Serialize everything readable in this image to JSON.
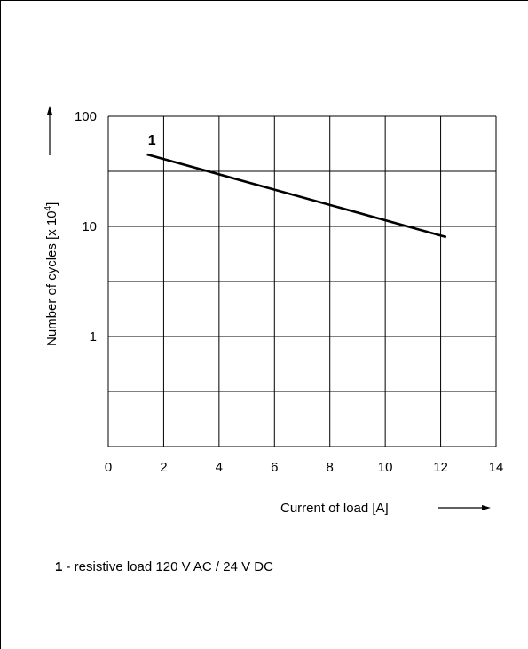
{
  "chart_data": {
    "type": "line",
    "xlabel": "Current of load [A]",
    "ylabel_base": "Number of cycles [x 10",
    "ylabel_exp": "4",
    "ylabel_close": "]",
    "x_ticks": [
      "0",
      "2",
      "4",
      "6",
      "8",
      "10",
      "12",
      "14"
    ],
    "y_ticks": [
      "100",
      "10",
      "1"
    ],
    "y_scale": "log",
    "xlim": [
      0,
      14
    ],
    "ylim": [
      0.1,
      100
    ],
    "grid": true,
    "series": [
      {
        "name": "1",
        "x": [
          1.4,
          12.2
        ],
        "y": [
          45,
          8
        ]
      }
    ]
  },
  "legend": {
    "key": "1",
    "text": " - resistive load 120 V AC / 24 V DC"
  }
}
